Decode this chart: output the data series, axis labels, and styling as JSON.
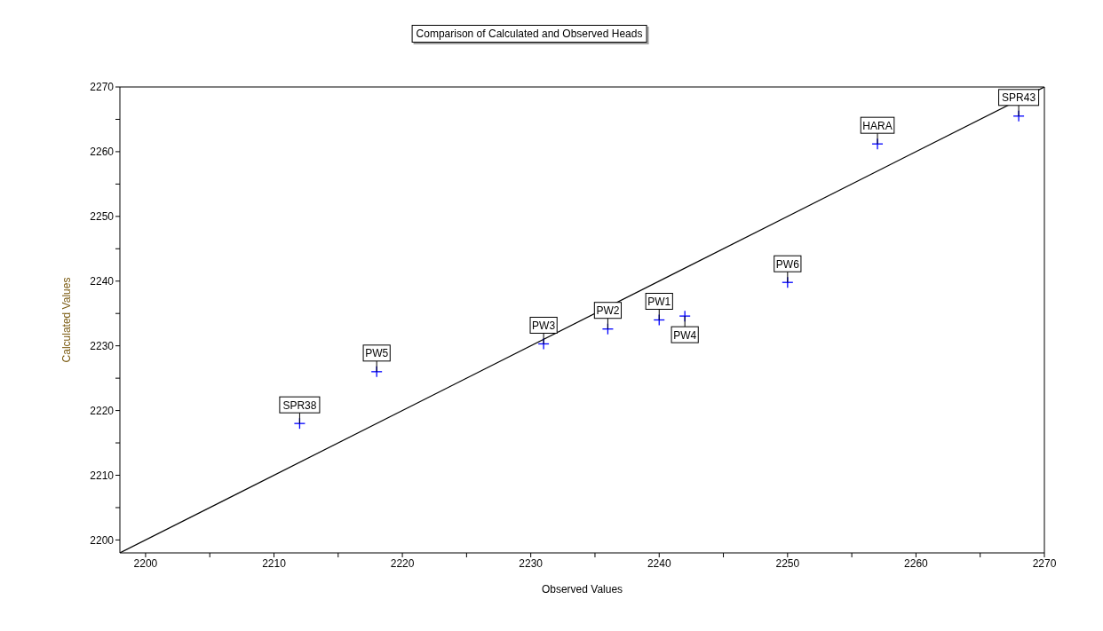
{
  "chart_data": {
    "type": "scatter",
    "title": "Comparison of Calculated and Observed Heads",
    "xlabel": "Observed Values",
    "ylabel": "Calculated Values",
    "xlim": [
      2198,
      2270
    ],
    "ylim": [
      2198,
      2270
    ],
    "xticks": [
      2200,
      {
        "value": 2205,
        "label": null
      },
      2210,
      {
        "value": 2215,
        "label": null
      },
      2220,
      {
        "value": 2225,
        "label": null
      },
      2230,
      {
        "value": 2235,
        "label": null
      },
      2240,
      {
        "value": 2245,
        "label": null
      },
      2250,
      {
        "value": 2255,
        "label": null
      },
      2260,
      {
        "value": 2265,
        "label": null
      },
      2270
    ],
    "yticks": [
      2200,
      {
        "value": 2205,
        "label": null
      },
      2210,
      {
        "value": 2215,
        "label": null
      },
      2220,
      {
        "value": 2225,
        "label": null
      },
      2230,
      {
        "value": 2235,
        "label": null
      },
      2240,
      {
        "value": 2245,
        "label": null
      },
      2250,
      {
        "value": 2255,
        "label": null
      },
      2260,
      {
        "value": 2265,
        "label": null
      },
      2270
    ],
    "series": [
      {
        "type": "line",
        "color": "#000000",
        "marker": "none",
        "x": [
          2198,
          2270
        ],
        "values": [
          2198,
          2270
        ]
      },
      {
        "color": "#0000ff",
        "marker": "cross",
        "x": [
          2212,
          2218,
          2231,
          2236,
          2240,
          2242,
          2250,
          2257,
          2268
        ],
        "values": [
          2218,
          2226,
          2230.3,
          2232.6,
          2234,
          2234.6,
          2239.8,
          2261.2,
          2265.5
        ]
      }
    ],
    "annotations": [
      {
        "text": "SPR38",
        "x": 2212,
        "y": 2218
      },
      {
        "text": "PW5",
        "x": 2218,
        "y": 2226
      },
      {
        "text": "PW3",
        "x": 2231,
        "y": 2230.3
      },
      {
        "text": "PW2",
        "x": 2236,
        "y": 2232.6
      },
      {
        "text": "PW1",
        "x": 2240,
        "y": 2234
      },
      {
        "text": "PW4",
        "x": 2242,
        "y": 2234.6
      },
      {
        "text": "PW6",
        "x": 2250,
        "y": 2239.8
      },
      {
        "text": "HARA",
        "x": 2257,
        "y": 2261.2
      },
      {
        "text": "SPR43",
        "x": 2268,
        "y": 2265.5
      }
    ]
  }
}
